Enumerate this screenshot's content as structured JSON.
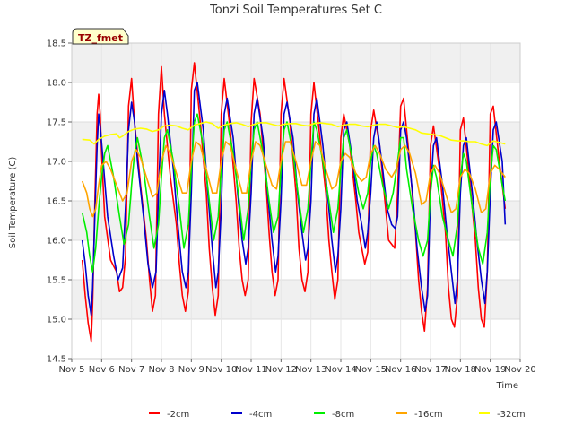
{
  "chart_data": {
    "type": "line",
    "title": "Tonzi Soil Temperatures Set C",
    "xlabel": "Time",
    "ylabel": "Soil Temperature (C)",
    "xlim": [
      5,
      20
    ],
    "ylim": [
      14.5,
      18.5
    ],
    "x_ticks": [
      5,
      6,
      7,
      8,
      9,
      10,
      11,
      12,
      13,
      14,
      15,
      16,
      17,
      18,
      19,
      20
    ],
    "x_tick_labels": [
      "Nov 5",
      "Nov 6",
      "Nov 7",
      "Nov 8",
      "Nov 9",
      "Nov 10",
      "Nov 11",
      "Nov 12",
      "Nov 13",
      "Nov 14",
      "Nov 15",
      "Nov 16",
      "Nov 17",
      "Nov 18",
      "Nov 19",
      "Nov 20"
    ],
    "y_ticks": [
      14.5,
      15.0,
      15.5,
      16.0,
      16.5,
      17.0,
      17.5,
      18.0,
      18.5
    ],
    "y_tick_labels": [
      "14.5",
      "15.0",
      "15.5",
      "16.0",
      "16.5",
      "17.0",
      "17.5",
      "18.0",
      "18.5"
    ],
    "grid": true,
    "legend_position": "bottom",
    "annotation": "TZ_fmet",
    "x_units": "day of November",
    "series": [
      {
        "name": "-2cm",
        "color": "#ff0000",
        "x": [
          5.35,
          5.45,
          5.55,
          5.65,
          5.7,
          5.78,
          5.85,
          5.9,
          5.95,
          6.0,
          6.1,
          6.3,
          6.5,
          6.6,
          6.7,
          6.8,
          6.9,
          7.0,
          7.1,
          7.3,
          7.5,
          7.6,
          7.7,
          7.8,
          7.9,
          8.0,
          8.1,
          8.3,
          8.5,
          8.6,
          8.7,
          8.8,
          8.9,
          9.0,
          9.1,
          9.3,
          9.5,
          9.6,
          9.7,
          9.8,
          9.9,
          10.0,
          10.1,
          10.3,
          10.5,
          10.6,
          10.7,
          10.8,
          10.9,
          11.0,
          11.1,
          11.3,
          11.5,
          11.6,
          11.7,
          11.8,
          11.9,
          12.0,
          12.1,
          12.3,
          12.5,
          12.6,
          12.7,
          12.8,
          12.9,
          13.0,
          13.1,
          13.3,
          13.5,
          13.6,
          13.7,
          13.8,
          13.9,
          14.0,
          14.1,
          14.3,
          14.5,
          14.6,
          14.7,
          14.8,
          14.9,
          15.0,
          15.1,
          15.3,
          15.5,
          15.6,
          15.7,
          15.8,
          15.9,
          16.0,
          16.1,
          16.3,
          16.5,
          16.6,
          16.7,
          16.8,
          16.9,
          17.0,
          17.1,
          17.3,
          17.5,
          17.6,
          17.7,
          17.8,
          17.9,
          18.0,
          18.1,
          18.3,
          18.5,
          18.6,
          18.7,
          18.8,
          18.9,
          19.0,
          19.1,
          19.3,
          19.5
        ],
        "y": [
          15.75,
          15.3,
          14.95,
          14.72,
          15.2,
          16.6,
          17.6,
          17.85,
          17.6,
          17.1,
          16.3,
          15.75,
          15.6,
          15.35,
          15.4,
          15.8,
          17.7,
          18.05,
          17.5,
          16.7,
          16.0,
          15.5,
          15.1,
          15.3,
          17.6,
          18.2,
          17.6,
          16.8,
          16.2,
          15.7,
          15.3,
          15.1,
          15.35,
          17.9,
          18.25,
          17.5,
          16.6,
          15.9,
          15.4,
          15.05,
          15.3,
          17.6,
          18.05,
          17.4,
          16.5,
          15.9,
          15.5,
          15.3,
          15.5,
          17.5,
          18.05,
          17.6,
          16.7,
          16.1,
          15.6,
          15.3,
          15.5,
          17.6,
          18.05,
          17.5,
          16.6,
          15.9,
          15.5,
          15.35,
          15.6,
          17.6,
          18.0,
          17.3,
          16.6,
          16.0,
          15.6,
          15.25,
          15.5,
          17.3,
          17.6,
          17.2,
          16.5,
          16.1,
          15.9,
          15.7,
          15.85,
          17.4,
          17.65,
          17.2,
          16.4,
          16.0,
          15.95,
          15.9,
          16.6,
          17.7,
          17.8,
          17.0,
          16.1,
          15.5,
          15.1,
          14.85,
          15.4,
          17.2,
          17.45,
          16.9,
          16.1,
          15.4,
          15.0,
          14.9,
          15.3,
          17.4,
          17.55,
          16.8,
          16.0,
          15.4,
          15.0,
          14.9,
          15.6,
          17.6,
          17.7,
          17.0,
          16.4
        ]
      },
      {
        "name": "-4cm",
        "color": "#0000cc",
        "x": [
          5.35,
          5.45,
          5.55,
          5.65,
          5.7,
          5.78,
          5.85,
          5.9,
          5.95,
          6.05,
          6.2,
          6.4,
          6.55,
          6.7,
          6.82,
          6.9,
          7.0,
          7.1,
          7.2,
          7.4,
          7.55,
          7.7,
          7.82,
          7.9,
          8.0,
          8.1,
          8.2,
          8.4,
          8.55,
          8.7,
          8.82,
          8.9,
          9.0,
          9.1,
          9.2,
          9.4,
          9.55,
          9.7,
          9.82,
          9.9,
          10.0,
          10.1,
          10.2,
          10.4,
          10.55,
          10.7,
          10.82,
          10.9,
          11.0,
          11.1,
          11.2,
          11.4,
          11.55,
          11.7,
          11.82,
          11.9,
          12.0,
          12.1,
          12.2,
          12.4,
          12.55,
          12.7,
          12.82,
          12.9,
          13.0,
          13.1,
          13.2,
          13.4,
          13.55,
          13.7,
          13.82,
          13.9,
          14.0,
          14.1,
          14.2,
          14.4,
          14.55,
          14.7,
          14.82,
          14.9,
          15.0,
          15.1,
          15.2,
          15.4,
          15.55,
          15.7,
          15.82,
          15.9,
          16.0,
          16.1,
          16.2,
          16.4,
          16.55,
          16.7,
          16.82,
          16.9,
          17.0,
          17.1,
          17.2,
          17.4,
          17.55,
          17.7,
          17.82,
          17.9,
          18.0,
          18.1,
          18.2,
          18.4,
          18.55,
          18.7,
          18.82,
          18.9,
          19.0,
          19.1,
          19.2,
          19.4,
          19.5
        ],
        "y": [
          16.0,
          15.7,
          15.3,
          15.05,
          15.4,
          16.4,
          17.2,
          17.6,
          17.45,
          17.0,
          16.3,
          15.8,
          15.5,
          15.65,
          16.6,
          17.4,
          17.75,
          17.5,
          17.0,
          16.3,
          15.7,
          15.4,
          15.6,
          16.6,
          17.6,
          17.9,
          17.6,
          16.9,
          16.2,
          15.6,
          15.4,
          15.6,
          16.6,
          17.9,
          18.0,
          17.4,
          16.6,
          15.9,
          15.4,
          15.6,
          16.4,
          17.6,
          17.8,
          17.3,
          16.6,
          16.0,
          15.7,
          15.9,
          16.6,
          17.6,
          17.8,
          17.3,
          16.6,
          16.0,
          15.6,
          15.8,
          16.5,
          17.6,
          17.75,
          17.3,
          16.6,
          16.1,
          15.75,
          15.9,
          16.5,
          17.6,
          17.8,
          17.2,
          16.6,
          16.0,
          15.6,
          15.8,
          16.4,
          17.4,
          17.5,
          17.0,
          16.5,
          16.2,
          15.9,
          16.1,
          16.6,
          17.3,
          17.5,
          16.9,
          16.4,
          16.2,
          16.15,
          16.3,
          17.4,
          17.5,
          17.3,
          16.6,
          15.9,
          15.4,
          15.1,
          15.3,
          16.6,
          17.2,
          17.3,
          16.7,
          16.1,
          15.6,
          15.2,
          15.5,
          16.6,
          17.2,
          17.3,
          16.6,
          16.0,
          15.5,
          15.2,
          15.6,
          16.6,
          17.4,
          17.5,
          17.0,
          16.2
        ]
      },
      {
        "name": "-8cm",
        "color": "#00ee00",
        "x": [
          5.35,
          5.5,
          5.6,
          5.7,
          5.8,
          5.9,
          6.0,
          6.1,
          6.2,
          6.4,
          6.6,
          6.75,
          6.9,
          7.0,
          7.1,
          7.2,
          7.4,
          7.6,
          7.75,
          7.9,
          8.0,
          8.1,
          8.2,
          8.4,
          8.6,
          8.75,
          8.9,
          9.0,
          9.1,
          9.2,
          9.4,
          9.6,
          9.75,
          9.9,
          10.0,
          10.1,
          10.2,
          10.4,
          10.6,
          10.75,
          10.9,
          11.0,
          11.1,
          11.2,
          11.4,
          11.6,
          11.75,
          11.9,
          12.0,
          12.1,
          12.2,
          12.4,
          12.6,
          12.75,
          12.9,
          13.0,
          13.1,
          13.2,
          13.4,
          13.6,
          13.75,
          13.9,
          14.0,
          14.1,
          14.2,
          14.4,
          14.6,
          14.75,
          14.9,
          15.0,
          15.1,
          15.2,
          15.4,
          15.6,
          15.75,
          15.9,
          16.0,
          16.1,
          16.2,
          16.4,
          16.6,
          16.75,
          16.9,
          17.0,
          17.1,
          17.2,
          17.4,
          17.6,
          17.75,
          17.9,
          18.0,
          18.1,
          18.2,
          18.4,
          18.6,
          18.75,
          18.9,
          19.0,
          19.1,
          19.2,
          19.4,
          19.5
        ],
        "y": [
          16.35,
          16.1,
          15.8,
          15.6,
          15.9,
          16.4,
          16.8,
          17.1,
          17.2,
          16.8,
          16.3,
          15.95,
          16.2,
          16.7,
          17.1,
          17.3,
          16.9,
          16.3,
          15.9,
          16.2,
          16.8,
          17.3,
          17.4,
          17.0,
          16.4,
          15.9,
          16.2,
          16.9,
          17.5,
          17.6,
          17.2,
          16.5,
          16.0,
          16.3,
          16.9,
          17.4,
          17.5,
          17.1,
          16.5,
          16.0,
          16.4,
          17.0,
          17.4,
          17.5,
          17.1,
          16.5,
          16.1,
          16.3,
          16.9,
          17.4,
          17.5,
          17.1,
          16.5,
          16.1,
          16.4,
          17.0,
          17.5,
          17.4,
          17.0,
          16.5,
          16.1,
          16.4,
          16.9,
          17.3,
          17.4,
          17.0,
          16.6,
          16.4,
          16.6,
          17.0,
          17.2,
          17.1,
          16.7,
          16.4,
          16.6,
          17.0,
          17.3,
          17.3,
          16.9,
          16.4,
          16.0,
          15.8,
          16.0,
          16.6,
          16.95,
          16.8,
          16.3,
          16.0,
          15.8,
          16.2,
          16.8,
          17.1,
          17.0,
          16.4,
          15.9,
          15.7,
          16.1,
          16.8,
          17.2,
          17.15,
          16.7,
          16.5
        ]
      },
      {
        "name": "-16cm",
        "color": "#ffa500",
        "x": [
          5.35,
          5.5,
          5.6,
          5.7,
          5.8,
          5.9,
          6.0,
          6.15,
          6.3,
          6.5,
          6.7,
          6.85,
          7.0,
          7.15,
          7.3,
          7.5,
          7.7,
          7.85,
          8.0,
          8.15,
          8.3,
          8.5,
          8.7,
          8.85,
          9.0,
          9.15,
          9.3,
          9.5,
          9.7,
          9.85,
          10.0,
          10.15,
          10.3,
          10.5,
          10.7,
          10.85,
          11.0,
          11.15,
          11.3,
          11.5,
          11.7,
          11.85,
          12.0,
          12.15,
          12.3,
          12.5,
          12.7,
          12.85,
          13.0,
          13.15,
          13.3,
          13.5,
          13.7,
          13.85,
          14.0,
          14.15,
          14.3,
          14.5,
          14.7,
          14.85,
          15.0,
          15.15,
          15.3,
          15.5,
          15.7,
          15.85,
          16.0,
          16.15,
          16.3,
          16.5,
          16.7,
          16.85,
          17.0,
          17.15,
          17.3,
          17.5,
          17.7,
          17.85,
          18.0,
          18.15,
          18.3,
          18.5,
          18.7,
          18.85,
          19.0,
          19.15,
          19.3,
          19.5
        ],
        "y": [
          16.75,
          16.6,
          16.4,
          16.3,
          16.4,
          16.7,
          16.95,
          17.0,
          16.9,
          16.7,
          16.5,
          16.6,
          17.0,
          17.15,
          17.05,
          16.8,
          16.55,
          16.6,
          17.0,
          17.2,
          17.1,
          16.85,
          16.6,
          16.6,
          17.0,
          17.25,
          17.2,
          16.9,
          16.6,
          16.6,
          17.0,
          17.25,
          17.2,
          16.9,
          16.6,
          16.6,
          17.0,
          17.25,
          17.2,
          16.95,
          16.7,
          16.65,
          17.0,
          17.25,
          17.25,
          17.0,
          16.7,
          16.7,
          17.0,
          17.25,
          17.2,
          16.9,
          16.65,
          16.7,
          17.0,
          17.1,
          17.05,
          16.85,
          16.75,
          16.8,
          17.1,
          17.2,
          17.1,
          16.9,
          16.8,
          16.9,
          17.15,
          17.2,
          17.1,
          16.85,
          16.45,
          16.5,
          16.85,
          16.95,
          16.85,
          16.6,
          16.35,
          16.4,
          16.8,
          16.9,
          16.85,
          16.65,
          16.35,
          16.4,
          16.85,
          16.95,
          16.9,
          16.8
        ]
      },
      {
        "name": "-32cm",
        "color": "#ffff00",
        "x": [
          5.35,
          5.6,
          5.75,
          5.9,
          6.1,
          6.3,
          6.5,
          6.6,
          6.7,
          6.9,
          7.1,
          7.3,
          7.5,
          7.7,
          7.9,
          8.1,
          8.3,
          8.5,
          8.7,
          8.9,
          9.1,
          9.3,
          9.5,
          9.7,
          9.9,
          10.1,
          10.3,
          10.5,
          10.7,
          10.9,
          11.1,
          11.3,
          11.5,
          11.7,
          11.9,
          12.1,
          12.3,
          12.5,
          12.7,
          12.9,
          13.1,
          13.3,
          13.5,
          13.7,
          13.9,
          14.1,
          14.3,
          14.5,
          14.7,
          14.9,
          15.1,
          15.3,
          15.5,
          15.7,
          15.9,
          16.1,
          16.3,
          16.5,
          16.7,
          16.9,
          17.1,
          17.3,
          17.5,
          17.7,
          17.9,
          18.1,
          18.3,
          18.5,
          18.7,
          18.9,
          19.1,
          19.3,
          19.5
        ],
        "y": [
          17.28,
          17.27,
          17.22,
          17.28,
          17.32,
          17.34,
          17.35,
          17.3,
          17.32,
          17.38,
          17.41,
          17.42,
          17.41,
          17.38,
          17.4,
          17.45,
          17.46,
          17.45,
          17.42,
          17.4,
          17.46,
          17.48,
          17.5,
          17.48,
          17.42,
          17.46,
          17.48,
          17.49,
          17.47,
          17.44,
          17.47,
          17.49,
          17.49,
          17.47,
          17.45,
          17.47,
          17.48,
          17.48,
          17.46,
          17.45,
          17.48,
          17.49,
          17.48,
          17.47,
          17.44,
          17.46,
          17.47,
          17.47,
          17.45,
          17.44,
          17.46,
          17.47,
          17.47,
          17.45,
          17.43,
          17.44,
          17.42,
          17.4,
          17.36,
          17.35,
          17.34,
          17.33,
          17.3,
          17.27,
          17.26,
          17.26,
          17.25,
          17.25,
          17.22,
          17.2,
          17.26,
          17.24,
          17.22
        ]
      }
    ]
  }
}
